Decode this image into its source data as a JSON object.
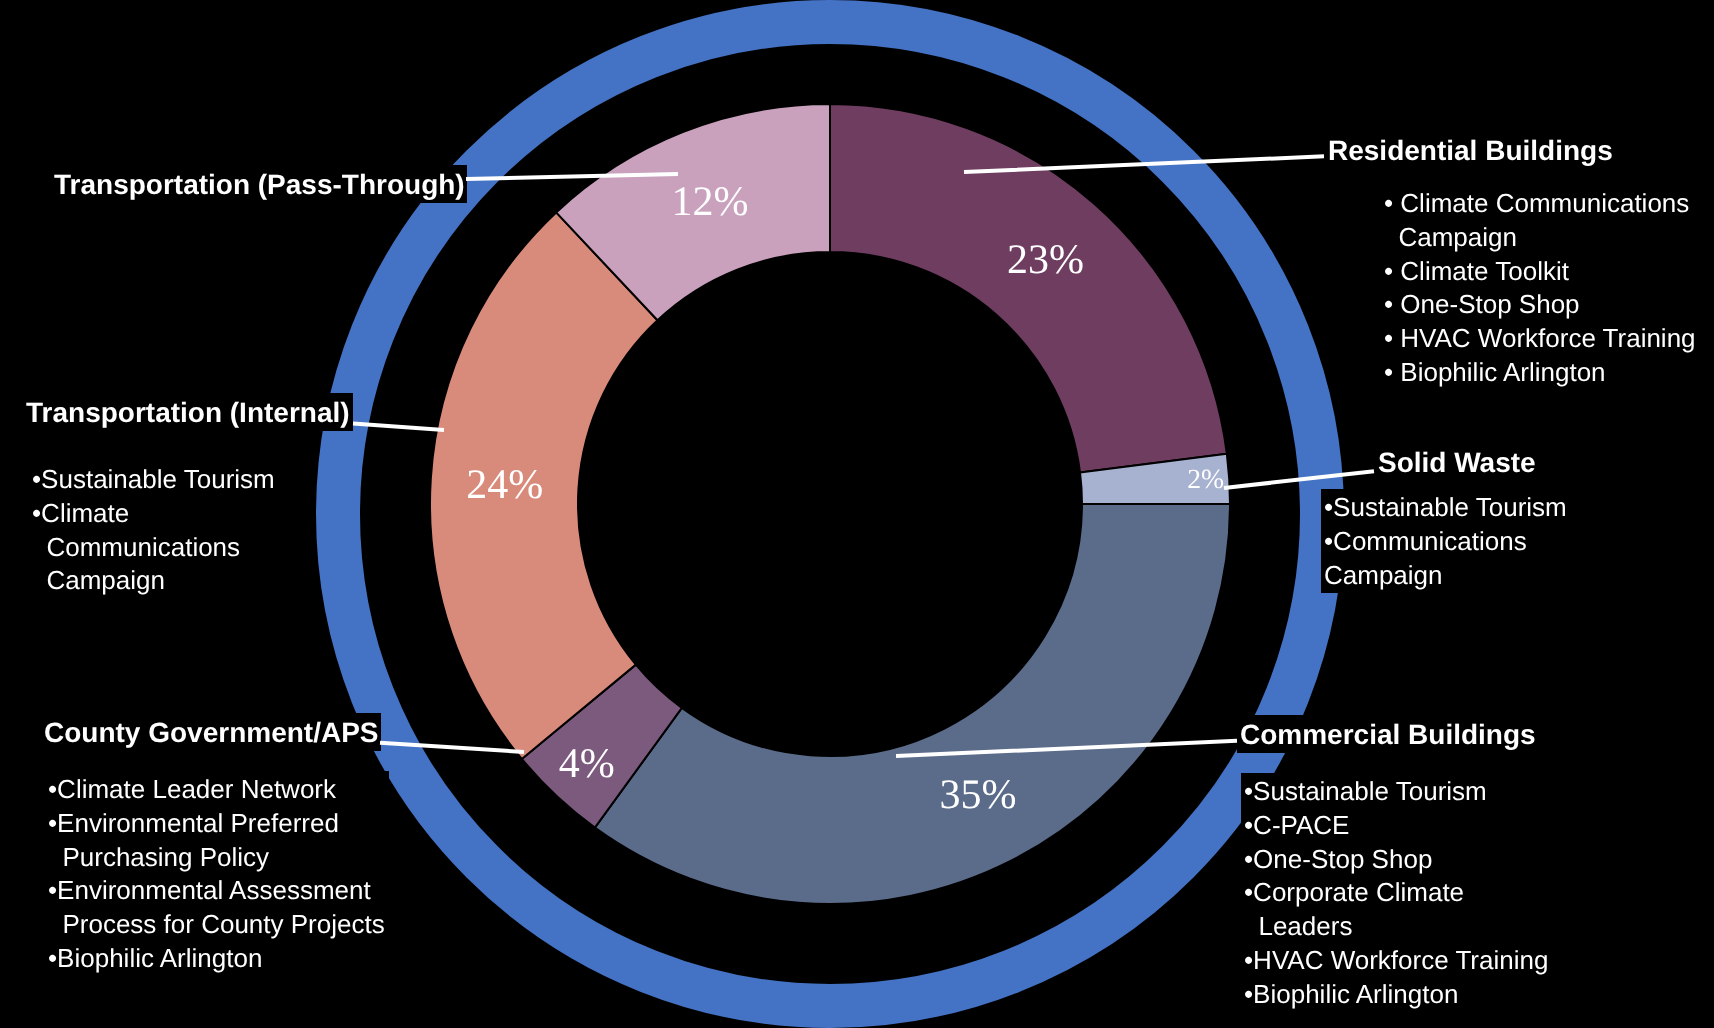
{
  "chart_data": {
    "type": "donut",
    "categories": [
      "Residential Buildings",
      "Solid Waste",
      "Commercial Buildings",
      "County Government/APS",
      "Transportation (Internal)",
      "Transportation (Pass-Through)"
    ],
    "values": [
      23,
      2,
      35,
      4,
      24,
      12
    ],
    "value_labels": [
      "23%",
      "2%",
      "35%",
      "4%",
      "24%",
      "12%"
    ],
    "colors": [
      "#6e3d60",
      "#a6b2cf",
      "#5b6b8a",
      "#7b5a7d",
      "#d98b7b",
      "#c9a1bd"
    ],
    "annotations": [
      "• Climate Communications\n  Campaign\n• Climate Toolkit\n• One-Stop Shop\n• HVAC Workforce Training\n• Biophilic Arlington",
      "•Sustainable Tourism\n•Communications\nCampaign",
      "•Sustainable Tourism\n•C-PACE\n•One-Stop Shop\n•Corporate Climate\n  Leaders\n•HVAC Workforce Training\n•Biophilic Arlington",
      "•Climate Leader Network\n•Environmental Preferred\n  Purchasing Policy\n•Environmental Assessment\n  Process for County Projects\n•Biophilic Arlington",
      "•Sustainable Tourism\n•Climate\n  Communications\n  Campaign"
    ],
    "legend": false
  }
}
